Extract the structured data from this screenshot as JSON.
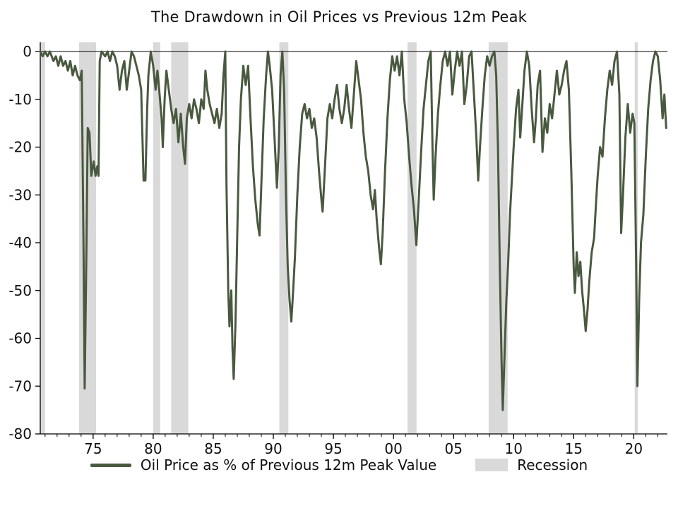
{
  "title": "The Drawdown in Oil Prices vs Previous 12m Peak",
  "legend": {
    "series_label": "Oil Price as % of Previous 12m Peak Value",
    "recession_label": "Recession"
  },
  "colors": {
    "line": "#49593f",
    "recession": "#d9d9d9",
    "axis": "#000000",
    "text": "#111111",
    "background": "#ffffff"
  },
  "chart_data": {
    "type": "line",
    "title": "The Drawdown in Oil Prices vs Previous 12m Peak",
    "xlabel": "",
    "ylabel": "",
    "x_range": [
      1970.6,
      2022.8
    ],
    "y_range": [
      -80,
      0
    ],
    "grid": false,
    "legend_position": "bottom",
    "x_ticks": {
      "values": [
        1975,
        1980,
        1985,
        1990,
        1995,
        2000,
        2005,
        2010,
        2015,
        2020
      ],
      "labels": [
        "75",
        "80",
        "85",
        "90",
        "95",
        "00",
        "05",
        "10",
        "15",
        "20"
      ]
    },
    "x_minor_tick_interval": 1,
    "y_ticks": [
      0,
      -10,
      -20,
      -30,
      -40,
      -50,
      -60,
      -70,
      -80
    ],
    "recession_bands": [
      [
        1970.6,
        1971.0
      ],
      [
        1973.83,
        1975.25
      ],
      [
        1980.0,
        1980.58
      ],
      [
        1981.5,
        1982.92
      ],
      [
        1990.5,
        1991.25
      ],
      [
        2001.17,
        2001.92
      ],
      [
        2007.92,
        2009.5
      ],
      [
        2020.08,
        2020.33
      ]
    ],
    "series": [
      {
        "name": "Oil Price as % of Previous 12m Peak Value",
        "points": [
          [
            1970.6,
            0
          ],
          [
            1970.8,
            -1
          ],
          [
            1971,
            0
          ],
          [
            1971.2,
            -1
          ],
          [
            1971.4,
            0
          ],
          [
            1971.7,
            -2
          ],
          [
            1971.9,
            -1
          ],
          [
            1972.1,
            -3
          ],
          [
            1972.3,
            -1
          ],
          [
            1972.5,
            -3
          ],
          [
            1972.7,
            -2
          ],
          [
            1972.9,
            -4
          ],
          [
            1973.1,
            -2
          ],
          [
            1973.3,
            -5
          ],
          [
            1973.5,
            -3
          ],
          [
            1973.7,
            -5
          ],
          [
            1973.9,
            -6
          ],
          [
            1974.05,
            -4
          ],
          [
            1974.2,
            -40
          ],
          [
            1974.3,
            -70.5
          ],
          [
            1974.45,
            -40
          ],
          [
            1974.55,
            -16
          ],
          [
            1974.7,
            -17
          ],
          [
            1974.85,
            -26
          ],
          [
            1975.05,
            -23
          ],
          [
            1975.2,
            -26
          ],
          [
            1975.35,
            -24
          ],
          [
            1975.45,
            -26
          ],
          [
            1975.55,
            -2
          ],
          [
            1975.7,
            0
          ],
          [
            1976,
            -1
          ],
          [
            1976.2,
            0
          ],
          [
            1976.4,
            -2
          ],
          [
            1976.6,
            0
          ],
          [
            1976.8,
            -1
          ],
          [
            1977,
            -3
          ],
          [
            1977.2,
            -8
          ],
          [
            1977.4,
            -4
          ],
          [
            1977.6,
            -2
          ],
          [
            1977.8,
            -8
          ],
          [
            1978,
            -4
          ],
          [
            1978.2,
            0
          ],
          [
            1978.4,
            -1
          ],
          [
            1978.6,
            -3
          ],
          [
            1978.8,
            -5
          ],
          [
            1979,
            -8
          ],
          [
            1979.2,
            -27
          ],
          [
            1979.35,
            -27
          ],
          [
            1979.5,
            -12
          ],
          [
            1979.6,
            -5
          ],
          [
            1979.8,
            0
          ],
          [
            1980,
            -3
          ],
          [
            1980.2,
            -8
          ],
          [
            1980.35,
            -4
          ],
          [
            1980.5,
            -8
          ],
          [
            1980.7,
            -14
          ],
          [
            1980.8,
            -20
          ],
          [
            1980.95,
            -10
          ],
          [
            1981.1,
            -4
          ],
          [
            1981.3,
            -8
          ],
          [
            1981.5,
            -12
          ],
          [
            1981.7,
            -15
          ],
          [
            1981.9,
            -12
          ],
          [
            1982.1,
            -19
          ],
          [
            1982.3,
            -13
          ],
          [
            1982.5,
            -20
          ],
          [
            1982.65,
            -23.5
          ],
          [
            1982.8,
            -14
          ],
          [
            1983,
            -11
          ],
          [
            1983.2,
            -14
          ],
          [
            1983.4,
            -10
          ],
          [
            1983.6,
            -12
          ],
          [
            1983.8,
            -15
          ],
          [
            1984,
            -10
          ],
          [
            1984.2,
            -12
          ],
          [
            1984.35,
            -4
          ],
          [
            1984.5,
            -8
          ],
          [
            1984.7,
            -11
          ],
          [
            1984.9,
            -13
          ],
          [
            1985.1,
            -15
          ],
          [
            1985.3,
            -12
          ],
          [
            1985.5,
            -16
          ],
          [
            1985.7,
            -13
          ],
          [
            1985.85,
            -5
          ],
          [
            1986,
            0
          ],
          [
            1986.1,
            -28
          ],
          [
            1986.25,
            -50
          ],
          [
            1986.35,
            -57.5
          ],
          [
            1986.5,
            -50
          ],
          [
            1986.6,
            -62
          ],
          [
            1986.7,
            -68.5
          ],
          [
            1986.85,
            -57
          ],
          [
            1987,
            -38
          ],
          [
            1987.15,
            -20
          ],
          [
            1987.3,
            -10
          ],
          [
            1987.5,
            -3
          ],
          [
            1987.7,
            -7
          ],
          [
            1987.9,
            -3
          ],
          [
            1988.1,
            -14
          ],
          [
            1988.3,
            -24
          ],
          [
            1988.5,
            -31
          ],
          [
            1988.7,
            -36
          ],
          [
            1988.85,
            -38.5
          ],
          [
            1989,
            -28
          ],
          [
            1989.2,
            -14
          ],
          [
            1989.4,
            -5
          ],
          [
            1989.55,
            0
          ],
          [
            1989.7,
            -3
          ],
          [
            1989.9,
            -8
          ],
          [
            1990.1,
            -18
          ],
          [
            1990.3,
            -28.5
          ],
          [
            1990.45,
            -20
          ],
          [
            1990.6,
            -5
          ],
          [
            1990.75,
            0
          ],
          [
            1990.9,
            -8
          ],
          [
            1991.05,
            -30
          ],
          [
            1991.2,
            -45
          ],
          [
            1991.35,
            -52
          ],
          [
            1991.5,
            -56.5
          ],
          [
            1991.65,
            -50
          ],
          [
            1991.8,
            -43
          ],
          [
            1992,
            -30
          ],
          [
            1992.2,
            -20
          ],
          [
            1992.4,
            -13
          ],
          [
            1992.6,
            -11
          ],
          [
            1992.8,
            -14
          ],
          [
            1993,
            -12
          ],
          [
            1993.2,
            -16
          ],
          [
            1993.4,
            -14
          ],
          [
            1993.6,
            -18
          ],
          [
            1993.8,
            -25
          ],
          [
            1994,
            -31
          ],
          [
            1994.1,
            -33.5
          ],
          [
            1994.3,
            -24
          ],
          [
            1994.5,
            -14
          ],
          [
            1994.7,
            -11
          ],
          [
            1994.9,
            -14
          ],
          [
            1995.1,
            -10
          ],
          [
            1995.3,
            -7
          ],
          [
            1995.5,
            -12
          ],
          [
            1995.7,
            -15
          ],
          [
            1995.9,
            -12
          ],
          [
            1996.1,
            -7
          ],
          [
            1996.3,
            -12
          ],
          [
            1996.5,
            -16
          ],
          [
            1996.7,
            -9
          ],
          [
            1996.9,
            -2
          ],
          [
            1997.1,
            -6
          ],
          [
            1997.3,
            -10
          ],
          [
            1997.5,
            -17
          ],
          [
            1997.7,
            -22
          ],
          [
            1997.9,
            -25
          ],
          [
            1998.1,
            -30
          ],
          [
            1998.3,
            -33
          ],
          [
            1998.45,
            -29
          ],
          [
            1998.6,
            -35
          ],
          [
            1998.8,
            -41
          ],
          [
            1998.95,
            -44.5
          ],
          [
            1999.1,
            -38
          ],
          [
            1999.3,
            -25
          ],
          [
            1999.5,
            -14
          ],
          [
            1999.7,
            -6
          ],
          [
            1999.9,
            -1
          ],
          [
            2000.1,
            -4
          ],
          [
            2000.3,
            -1
          ],
          [
            2000.5,
            -5
          ],
          [
            2000.7,
            0
          ],
          [
            2000.9,
            -10
          ],
          [
            2001.1,
            -15
          ],
          [
            2001.3,
            -22
          ],
          [
            2001.5,
            -28
          ],
          [
            2001.7,
            -33
          ],
          [
            2001.9,
            -40.5
          ],
          [
            2002.1,
            -31
          ],
          [
            2002.3,
            -21
          ],
          [
            2002.5,
            -12
          ],
          [
            2002.7,
            -7
          ],
          [
            2002.9,
            -2
          ],
          [
            2003.1,
            0
          ],
          [
            2003.25,
            -20
          ],
          [
            2003.35,
            -31
          ],
          [
            2003.5,
            -22
          ],
          [
            2003.7,
            -13
          ],
          [
            2003.9,
            -7
          ],
          [
            2004.1,
            -2
          ],
          [
            2004.3,
            0
          ],
          [
            2004.5,
            -3
          ],
          [
            2004.7,
            0
          ],
          [
            2004.9,
            -9
          ],
          [
            2005.1,
            -4
          ],
          [
            2005.3,
            0
          ],
          [
            2005.5,
            -3
          ],
          [
            2005.7,
            0
          ],
          [
            2005.9,
            -11
          ],
          [
            2006.1,
            -7
          ],
          [
            2006.3,
            -1
          ],
          [
            2006.5,
            0
          ],
          [
            2006.7,
            -9
          ],
          [
            2006.9,
            -18
          ],
          [
            2007.05,
            -27
          ],
          [
            2007.2,
            -20
          ],
          [
            2007.4,
            -12
          ],
          [
            2007.6,
            -5
          ],
          [
            2007.8,
            -1
          ],
          [
            2008,
            -3
          ],
          [
            2008.2,
            -1
          ],
          [
            2008.4,
            0
          ],
          [
            2008.55,
            -5
          ],
          [
            2008.7,
            -20
          ],
          [
            2008.85,
            -45
          ],
          [
            2009,
            -65
          ],
          [
            2009.1,
            -75
          ],
          [
            2009.25,
            -63
          ],
          [
            2009.4,
            -52
          ],
          [
            2009.55,
            -44
          ],
          [
            2009.7,
            -34
          ],
          [
            2009.85,
            -27
          ],
          [
            2010,
            -20
          ],
          [
            2010.2,
            -12
          ],
          [
            2010.4,
            -8
          ],
          [
            2010.55,
            -18
          ],
          [
            2010.7,
            -12
          ],
          [
            2010.9,
            -4
          ],
          [
            2011.1,
            0
          ],
          [
            2011.3,
            -3
          ],
          [
            2011.5,
            -12
          ],
          [
            2011.7,
            -19
          ],
          [
            2011.85,
            -14
          ],
          [
            2012,
            -7
          ],
          [
            2012.2,
            -4
          ],
          [
            2012.4,
            -21
          ],
          [
            2012.6,
            -14
          ],
          [
            2012.8,
            -17
          ],
          [
            2013,
            -11
          ],
          [
            2013.2,
            -14
          ],
          [
            2013.4,
            -9
          ],
          [
            2013.6,
            -4
          ],
          [
            2013.8,
            -9
          ],
          [
            2014,
            -7
          ],
          [
            2014.2,
            -4
          ],
          [
            2014.4,
            -2
          ],
          [
            2014.6,
            -8
          ],
          [
            2014.8,
            -25
          ],
          [
            2015,
            -45
          ],
          [
            2015.1,
            -50.5
          ],
          [
            2015.25,
            -42
          ],
          [
            2015.4,
            -47
          ],
          [
            2015.55,
            -44
          ],
          [
            2015.7,
            -50
          ],
          [
            2015.85,
            -54
          ],
          [
            2016,
            -58.5
          ],
          [
            2016.15,
            -54
          ],
          [
            2016.3,
            -48
          ],
          [
            2016.5,
            -42
          ],
          [
            2016.7,
            -39
          ],
          [
            2016.85,
            -32
          ],
          [
            2017,
            -26
          ],
          [
            2017.2,
            -20
          ],
          [
            2017.4,
            -22
          ],
          [
            2017.6,
            -14
          ],
          [
            2017.8,
            -8
          ],
          [
            2018,
            -4
          ],
          [
            2018.2,
            -7
          ],
          [
            2018.4,
            -2
          ],
          [
            2018.6,
            0
          ],
          [
            2018.8,
            -9
          ],
          [
            2018.95,
            -38
          ],
          [
            2019.1,
            -30
          ],
          [
            2019.3,
            -18
          ],
          [
            2019.5,
            -11
          ],
          [
            2019.7,
            -17
          ],
          [
            2019.9,
            -13
          ],
          [
            2020.05,
            -15
          ],
          [
            2020.2,
            -45
          ],
          [
            2020.3,
            -70
          ],
          [
            2020.45,
            -52
          ],
          [
            2020.6,
            -40
          ],
          [
            2020.8,
            -34
          ],
          [
            2021,
            -22
          ],
          [
            2021.2,
            -12
          ],
          [
            2021.4,
            -6
          ],
          [
            2021.6,
            -2
          ],
          [
            2021.8,
            0
          ],
          [
            2022,
            -1
          ],
          [
            2022.2,
            -6
          ],
          [
            2022.4,
            -14
          ],
          [
            2022.55,
            -9
          ],
          [
            2022.7,
            -16
          ]
        ]
      }
    ]
  }
}
